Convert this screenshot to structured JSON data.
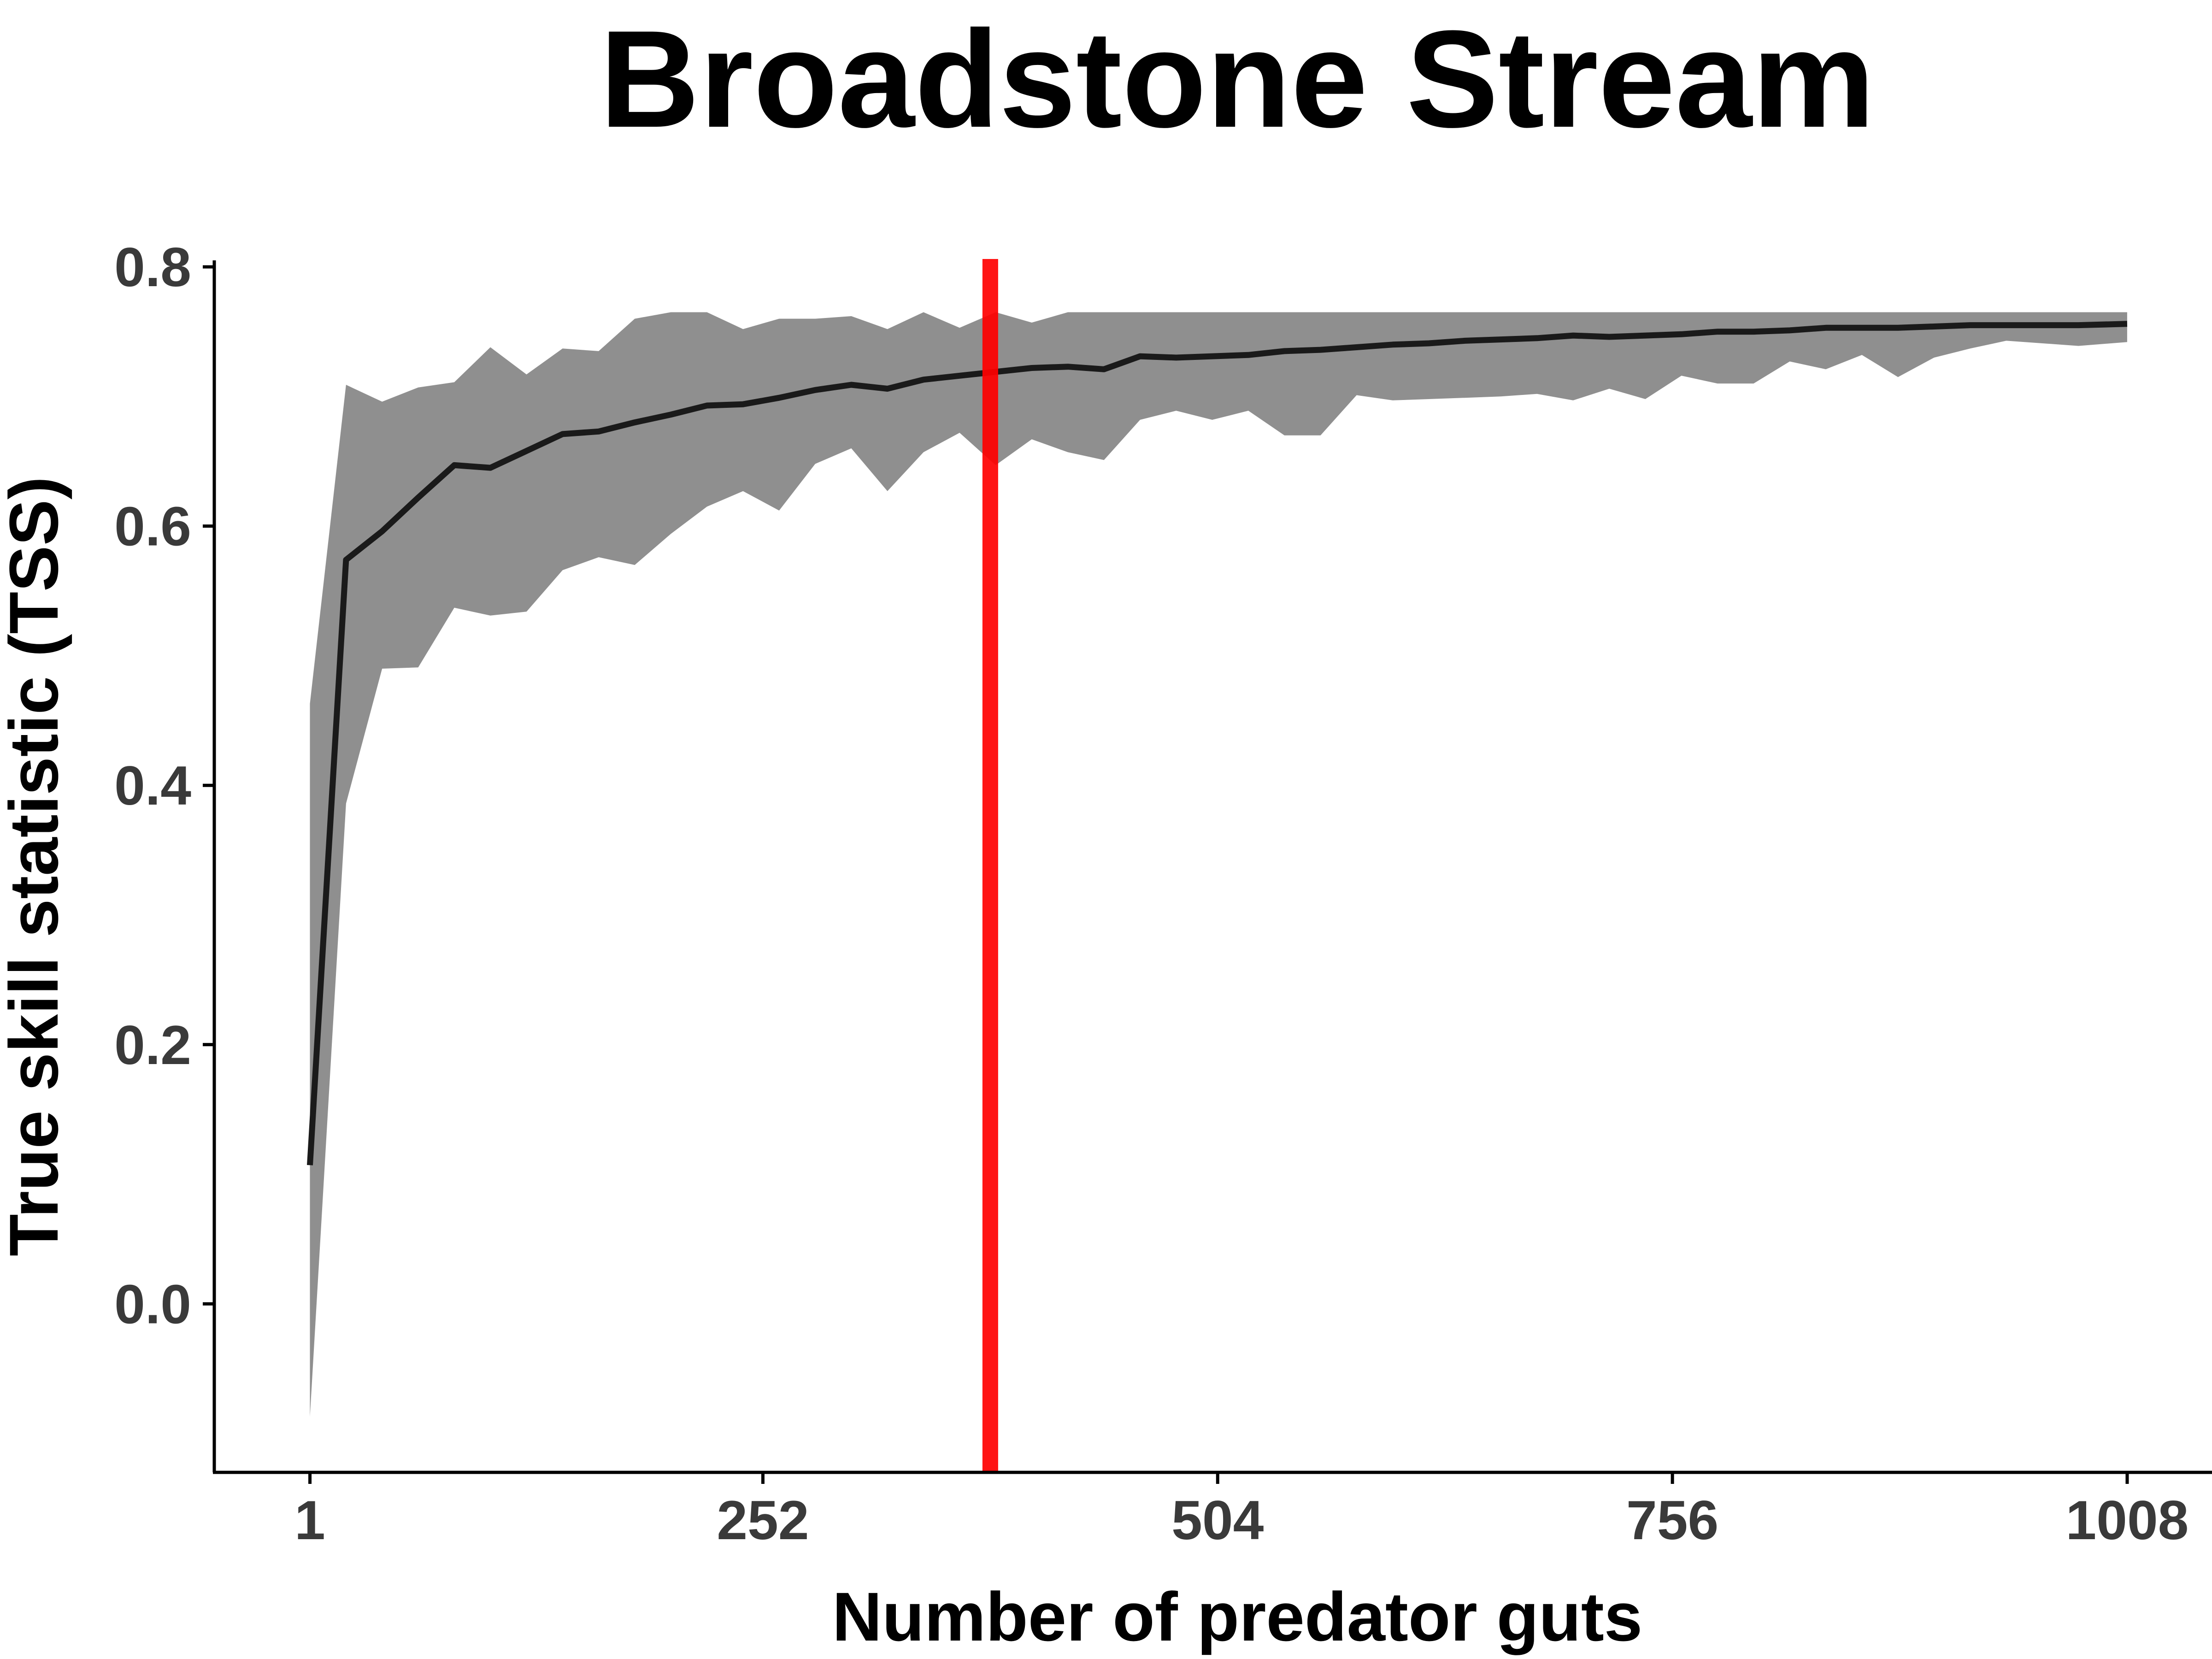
{
  "chart_data": {
    "type": "line",
    "title": "Broadstone Stream",
    "xlabel": "Number of predator guts",
    "ylabel": "True skill statistic (TSS)",
    "x_ticks": [
      1,
      252,
      504,
      756,
      1008
    ],
    "x_tick_labels": [
      "1",
      "252",
      "504",
      "756",
      "1008"
    ],
    "y_ticks": [
      0.0,
      0.2,
      0.4,
      0.6,
      0.8
    ],
    "y_tick_labels": [
      "0.0",
      "0.2",
      "0.4",
      "0.6",
      "0.8"
    ],
    "xlim": [
      -52,
      1055
    ],
    "ylim": [
      -0.13,
      0.805
    ],
    "grid": false,
    "legend": "none",
    "series": [
      {
        "x": [
          1,
          21,
          41,
          61,
          81,
          101,
          121,
          141,
          161,
          181,
          201,
          221,
          241,
          261,
          281,
          301,
          321,
          341,
          361,
          381,
          401,
          421,
          441,
          461,
          481,
          501,
          521,
          541,
          561,
          581,
          601,
          621,
          641,
          661,
          681,
          701,
          721,
          741,
          761,
          781,
          801,
          821,
          841,
          861,
          881,
          901,
          921,
          941,
          961,
          981,
          1008
        ],
        "mean": [
          0.107,
          0.574,
          0.596,
          0.622,
          0.647,
          0.645,
          0.658,
          0.671,
          0.673,
          0.68,
          0.686,
          0.693,
          0.694,
          0.699,
          0.705,
          0.709,
          0.706,
          0.713,
          0.716,
          0.719,
          0.722,
          0.723,
          0.721,
          0.731,
          0.73,
          0.731,
          0.732,
          0.735,
          0.736,
          0.738,
          0.74,
          0.741,
          0.743,
          0.744,
          0.745,
          0.747,
          0.746,
          0.747,
          0.748,
          0.75,
          0.75,
          0.751,
          0.753,
          0.753,
          0.753,
          0.754,
          0.755,
          0.755,
          0.755,
          0.755,
          0.756
        ],
        "upper": [
          0.463,
          0.709,
          0.696,
          0.707,
          0.711,
          0.738,
          0.717,
          0.737,
          0.735,
          0.76,
          0.765,
          0.765,
          0.752,
          0.76,
          0.76,
          0.762,
          0.752,
          0.765,
          0.753,
          0.765,
          0.757,
          0.765,
          0.765,
          0.765,
          0.765,
          0.765,
          0.765,
          0.765,
          0.765,
          0.765,
          0.765,
          0.765,
          0.765,
          0.765,
          0.765,
          0.765,
          0.765,
          0.765,
          0.765,
          0.765,
          0.765,
          0.765,
          0.765,
          0.765,
          0.765,
          0.765,
          0.765,
          0.765,
          0.765,
          0.765,
          0.765
        ],
        "lower": [
          -0.087,
          0.386,
          0.49,
          0.491,
          0.537,
          0.531,
          0.534,
          0.566,
          0.576,
          0.57,
          0.594,
          0.615,
          0.627,
          0.612,
          0.648,
          0.66,
          0.627,
          0.657,
          0.672,
          0.647,
          0.667,
          0.657,
          0.651,
          0.682,
          0.689,
          0.682,
          0.689,
          0.67,
          0.67,
          0.701,
          0.697,
          0.698,
          0.699,
          0.7,
          0.702,
          0.697,
          0.706,
          0.698,
          0.716,
          0.71,
          0.71,
          0.727,
          0.721,
          0.732,
          0.715,
          0.73,
          0.737,
          0.743,
          0.741,
          0.739,
          0.742
        ]
      }
    ],
    "vline": {
      "x": 378
    },
    "colors": {
      "line": "#1a1a1a",
      "band": "#8f8f8f",
      "vline": "#ff0000",
      "axis": "#000000",
      "tick_text": "#3a3a3a"
    }
  }
}
